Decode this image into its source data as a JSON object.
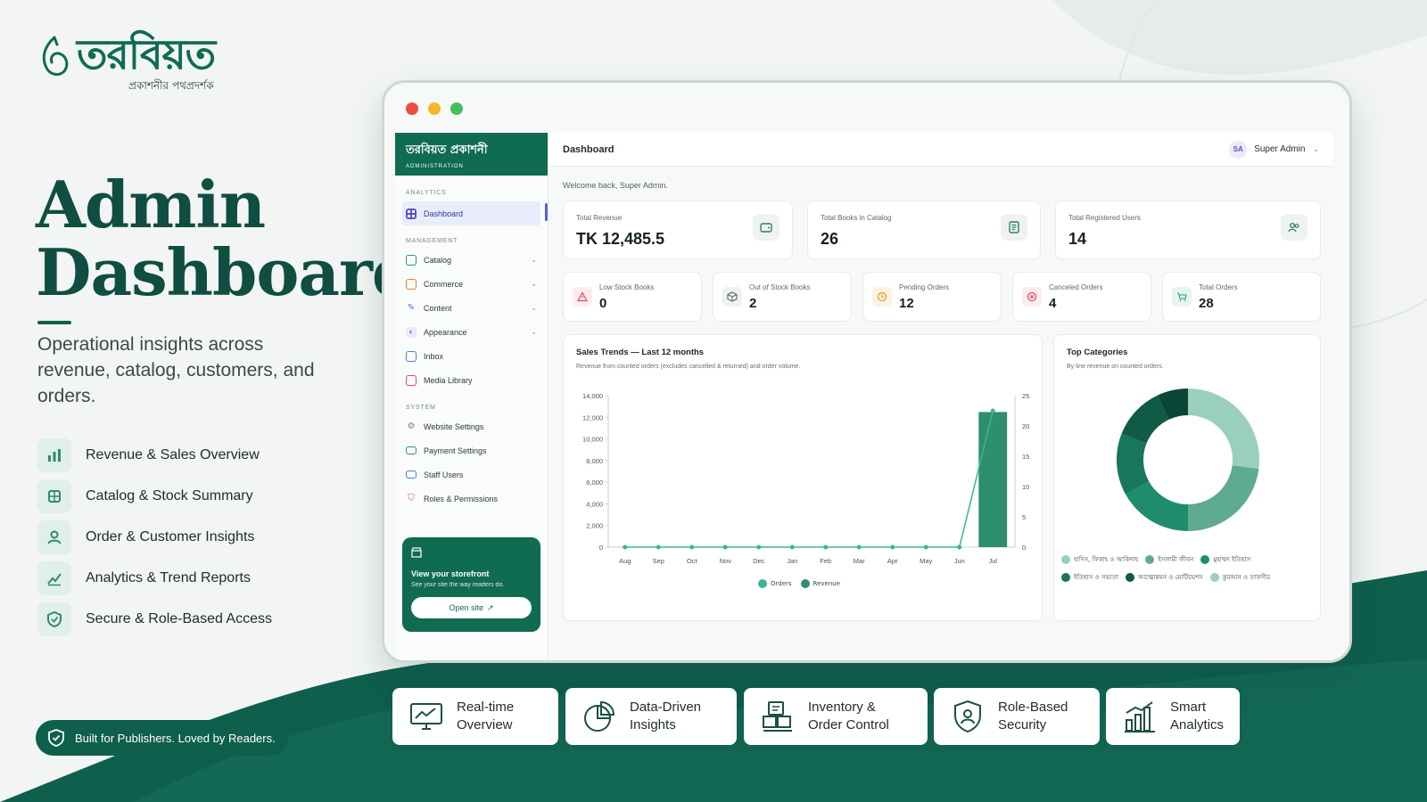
{
  "brand": {
    "name": "তরবিয়ত",
    "tagline": "প্রকাশনীর পথপ্রদর্শক"
  },
  "hero": {
    "title_line1": "Admin",
    "title_line2": "Dashboard",
    "subtitle": "Operational insights across revenue, catalog, customers, and orders."
  },
  "features": [
    {
      "icon": "bar-chart-icon",
      "label": "Revenue & Sales Overview"
    },
    {
      "icon": "box-icon",
      "label": "Catalog & Stock Summary"
    },
    {
      "icon": "user-icon",
      "label": "Order & Customer Insights"
    },
    {
      "icon": "trend-icon",
      "label": "Analytics & Trend Reports"
    },
    {
      "icon": "shield-icon",
      "label": "Secure & Role-Based Access"
    }
  ],
  "tagline_pill": "Built for Publishers. Loved by Readers.",
  "window": {
    "traffic_lights": [
      "#ef4b46",
      "#f5b62b",
      "#43c05a"
    ]
  },
  "sidebar": {
    "brand_name": "তরবিয়ত প্রকাশনী",
    "brand_sub": "ADMINISTRATION",
    "sections": {
      "analytics": "ANALYTICS",
      "management": "MANAGEMENT",
      "system": "SYSTEM"
    },
    "analytics_items": [
      {
        "label": "Dashboard",
        "icon": "grid-icon",
        "active": true
      }
    ],
    "management_items": [
      {
        "label": "Catalog",
        "icon": "book-icon",
        "color": "#2f9b6d"
      },
      {
        "label": "Commerce",
        "icon": "cart-icon",
        "color": "#e97f2e"
      },
      {
        "label": "Content",
        "icon": "pen-icon",
        "color": "#4a7be0"
      },
      {
        "label": "Appearance",
        "icon": "palette-icon",
        "color": "#8a55d6"
      },
      {
        "label": "Inbox",
        "icon": "inbox-icon",
        "color": "#3f86d6"
      },
      {
        "label": "Media Library",
        "icon": "image-icon",
        "color": "#e24a5a"
      }
    ],
    "system_items": [
      {
        "label": "Website Settings",
        "icon": "gear-icon",
        "color": "#7a8784"
      },
      {
        "label": "Payment Settings",
        "icon": "card-icon",
        "color": "#2f9b6d"
      },
      {
        "label": "Staff Users",
        "icon": "id-icon",
        "color": "#4a7be0"
      },
      {
        "label": "Roles & Permissions",
        "icon": "shield-icon",
        "color": "#e24a5a"
      }
    ],
    "storefront": {
      "title": "View your storefront",
      "subtitle": "See your site the way readers do.",
      "button": "Open site"
    }
  },
  "topbar": {
    "title": "Dashboard",
    "user_initials": "SA",
    "user_name": "Super Admin"
  },
  "welcome": "Welcome back, Super Admin.",
  "kpis": [
    {
      "label": "Total Revenue",
      "value": "TK 12,485.5",
      "icon": "wallet-icon"
    },
    {
      "label": "Total Books in Catalog",
      "value": "26",
      "icon": "book-icon"
    },
    {
      "label": "Total Registered Users",
      "value": "14",
      "icon": "users-icon"
    }
  ],
  "stats": [
    {
      "label": "Low Stock Books",
      "value": "0",
      "icon": "warning-icon",
      "color": "#e24a5a",
      "bg": "#fdecee"
    },
    {
      "label": "Out of Stock Books",
      "value": "2",
      "icon": "package-icon",
      "color": "#5b6663",
      "bg": "#eff2f1"
    },
    {
      "label": "Pending Orders",
      "value": "12",
      "icon": "clock-icon",
      "color": "#e49a2a",
      "bg": "#fdf3e3"
    },
    {
      "label": "Canceled Orders",
      "value": "4",
      "icon": "x-circle-icon",
      "color": "#e24a5a",
      "bg": "#fdecee"
    },
    {
      "label": "Total Orders",
      "value": "28",
      "icon": "cart-icon",
      "color": "#2f9b6d",
      "bg": "#e8f4ee"
    }
  ],
  "sales_panel": {
    "title": "Sales Trends — Last 12 months",
    "subtitle": "Revenue from counted orders (excludes cancelled & returned) and order volume."
  },
  "categories_panel": {
    "title": "Top Categories",
    "subtitle": "By line revenue on counted orders."
  },
  "chart_data": [
    {
      "type": "bar",
      "title": "Sales Trends — Last 12 months",
      "categories": [
        "Aug",
        "Sep",
        "Oct",
        "Nov",
        "Dec",
        "Jan",
        "Feb",
        "Mar",
        "Apr",
        "May",
        "Jun",
        "Jul"
      ],
      "series": [
        {
          "name": "Revenue",
          "kind": "bar",
          "axis": "left",
          "color": "#2e8f6e",
          "values": [
            0,
            0,
            0,
            0,
            0,
            0,
            0,
            0,
            0,
            0,
            0,
            12485.5
          ]
        },
        {
          "name": "Orders",
          "kind": "line",
          "axis": "right",
          "color": "#3cb395",
          "values": [
            0,
            0,
            0,
            0,
            0,
            0,
            0,
            0,
            0,
            0,
            0,
            22.5
          ]
        }
      ],
      "ylim": [
        0,
        14000
      ],
      "yticks": [
        "0",
        "2,000",
        "4,000",
        "6,000",
        "8,000",
        "10,000",
        "12,000",
        "14,000"
      ],
      "y2lim": [
        0,
        25
      ],
      "y2ticks": [
        "0",
        "5",
        "10",
        "15",
        "20",
        "25"
      ],
      "grid": false,
      "legend_position": "bottom"
    },
    {
      "type": "pie",
      "title": "Top Categories",
      "donut": true,
      "slices": [
        {
          "label": "হাদিস, ফিকাহ ও আকিদাহ",
          "value": 27,
          "color": "#9bcfbd"
        },
        {
          "label": "ইসলামী জীবন",
          "value": 23,
          "color": "#5faa92"
        },
        {
          "label": "মুহাম্মদ ইতিহাস",
          "value": 17,
          "color": "#1f8c6c"
        },
        {
          "label": "ইতিহাস ও সভ্যতা",
          "value": 14,
          "color": "#17765b"
        },
        {
          "label": "আত্মোন্নয়ন ও মোটিভেশন",
          "value": 12,
          "color": "#0f5b45"
        },
        {
          "label": "কুরআন ও তাফসীর",
          "value": 7,
          "color": "#0b4536"
        }
      ],
      "legend_position": "bottom"
    }
  ],
  "bottom_cards": [
    {
      "icon": "monitor-icon",
      "line1": "Real-time",
      "line2": "Overview"
    },
    {
      "icon": "pie-icon",
      "line1": "Data-Driven",
      "line2": "Insights"
    },
    {
      "icon": "boxes-icon",
      "line1": "Inventory &",
      "line2": "Order Control"
    },
    {
      "icon": "shield-icon",
      "line1": "Role-Based",
      "line2": "Security"
    },
    {
      "icon": "analytics-icon",
      "line1": "Smart",
      "line2": "Analytics"
    }
  ]
}
